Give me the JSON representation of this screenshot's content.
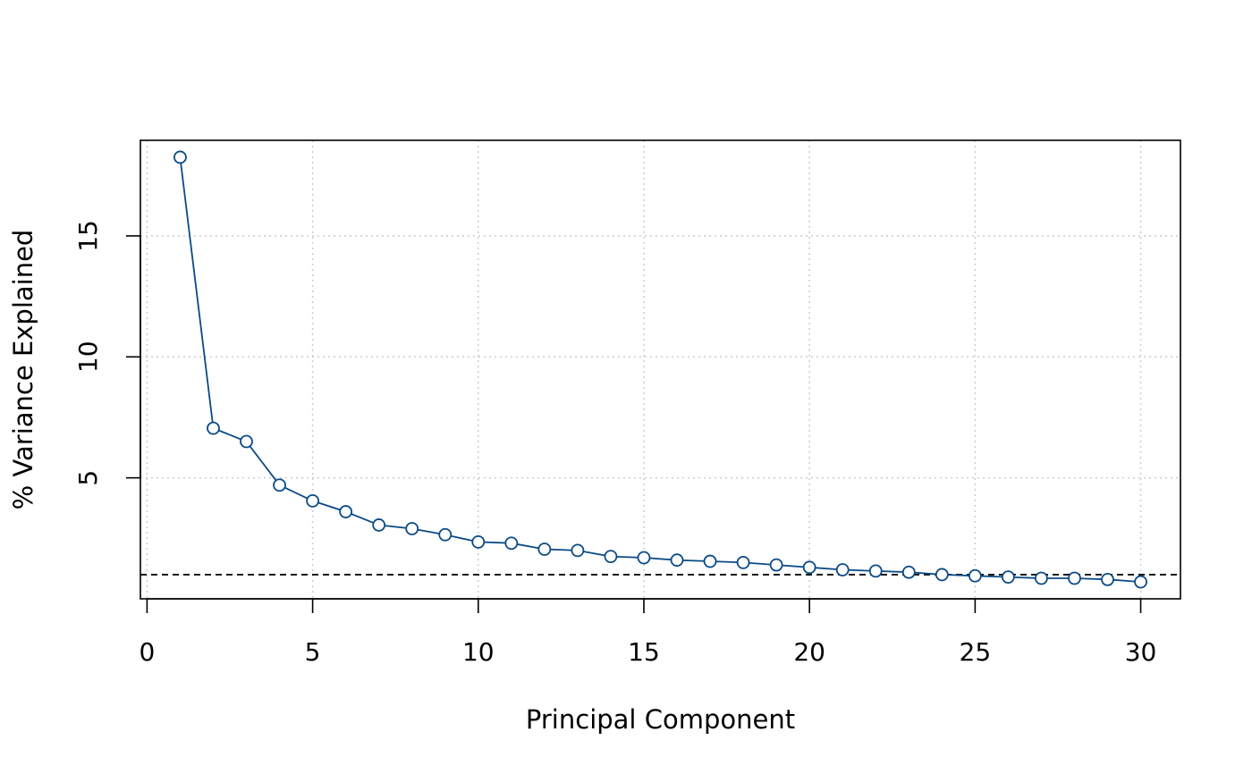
{
  "chart_data": {
    "type": "line",
    "title": "",
    "xlabel": "Principal Component",
    "ylabel": "% Variance Explained",
    "xlim": [
      -0.2,
      31.2
    ],
    "ylim": [
      0.0,
      18.95
    ],
    "x_ticks": [
      0,
      5,
      10,
      15,
      20,
      25,
      30
    ],
    "y_ticks": [
      5,
      10,
      15
    ],
    "grid": true,
    "reference_line": {
      "y": 1.0,
      "style": "dashed"
    },
    "series": [
      {
        "x": [
          1,
          2,
          3,
          4,
          5,
          6,
          7,
          8,
          9,
          10,
          11,
          12,
          13,
          14,
          15,
          16,
          17,
          18,
          19,
          20,
          21,
          22,
          23,
          24,
          25,
          26,
          27,
          28,
          29,
          30
        ],
        "values": [
          18.25,
          7.05,
          6.5,
          4.7,
          4.05,
          3.6,
          3.05,
          2.9,
          2.65,
          2.35,
          2.3,
          2.05,
          2.0,
          1.75,
          1.7,
          1.6,
          1.55,
          1.5,
          1.4,
          1.3,
          1.2,
          1.15,
          1.1,
          1.0,
          0.95,
          0.9,
          0.85,
          0.85,
          0.8,
          0.7
        ]
      }
    ],
    "colors": {
      "series": "#0b4a86",
      "reference": "#000000",
      "grid": "#cccccc",
      "axis": "#000000"
    }
  }
}
